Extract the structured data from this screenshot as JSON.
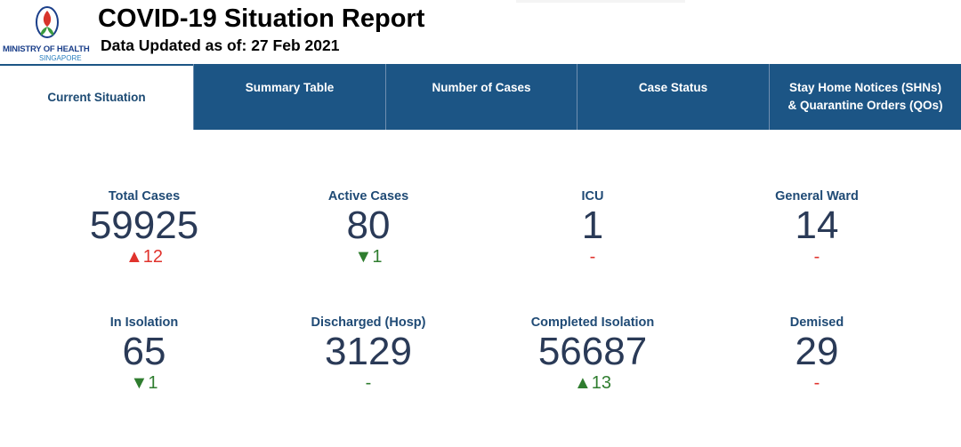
{
  "header": {
    "logo": {
      "line1": "MINISTRY OF HEALTH",
      "line2": "SINGAPORE",
      "colors": {
        "flame_red": "#d7342b",
        "leaf_green": "#3a9a3f",
        "outline_blue": "#1b3f8a"
      }
    },
    "title": "COVID-19 Situation Report",
    "updated": "Data Updated as of: 27 Feb 2021"
  },
  "tabs": [
    {
      "label": "Current Situation",
      "active": true
    },
    {
      "label": "Summary Table",
      "active": false
    },
    {
      "label": "Number of Cases",
      "active": false
    },
    {
      "label": "Case Status",
      "active": false
    },
    {
      "label_line1": "Stay Home Notices (SHNs)",
      "label_line2": "& Quarantine Orders (QOs)",
      "active": false
    }
  ],
  "stats": [
    {
      "label": "Total Cases",
      "value": "59925",
      "change": "▲12",
      "trend": "up-red"
    },
    {
      "label": "Active Cases",
      "value": "80",
      "change": "▼1",
      "trend": "down-green"
    },
    {
      "label": "ICU",
      "value": "1",
      "change": "-",
      "trend": "dash-red"
    },
    {
      "label": "General Ward",
      "value": "14",
      "change": "-",
      "trend": "dash-red"
    },
    {
      "label": "In Isolation",
      "value": "65",
      "change": "▼1",
      "trend": "down-green"
    },
    {
      "label": "Discharged (Hosp)",
      "value": "3129",
      "change": "-",
      "trend": "dash-green"
    },
    {
      "label": "Completed Isolation",
      "value": "56687",
      "change": "▲13",
      "trend": "up-green"
    },
    {
      "label": "Demised",
      "value": "29",
      "change": "-",
      "trend": "dash-red"
    }
  ],
  "colors": {
    "tab_bg": "#1c5585",
    "label": "#1f4a75",
    "value": "#2a3a57",
    "red": "#e0332d",
    "green": "#2f7d2f"
  }
}
